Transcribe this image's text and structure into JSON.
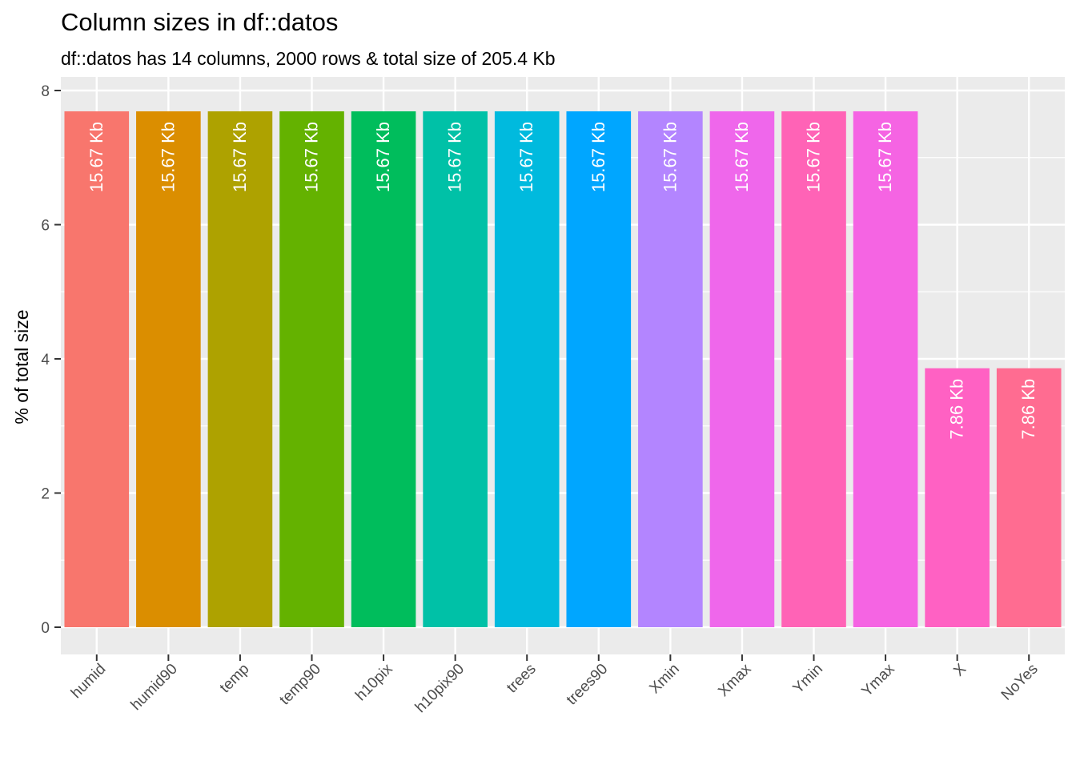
{
  "chart_data": {
    "type": "bar",
    "title": "Column sizes in df::datos",
    "subtitle": "df::datos has 14 columns, 2000 rows & total size of 205.4 Kb",
    "xlabel": "",
    "ylabel": "% of total size",
    "ylim": [
      -0.35,
      8.1
    ],
    "yticks": [
      0,
      2,
      4,
      6,
      8
    ],
    "grid": true,
    "legend": "none",
    "categories": [
      "humid",
      "humid90",
      "temp",
      "temp90",
      "h10pix",
      "h10pix90",
      "trees",
      "trees90",
      "Xmin",
      "Xmax",
      "Ymin",
      "Ymax",
      "X",
      "NoYes"
    ],
    "values": [
      7.69,
      7.69,
      7.69,
      7.69,
      7.69,
      7.69,
      7.69,
      7.69,
      7.69,
      7.69,
      7.69,
      7.69,
      3.86,
      3.86
    ],
    "labels": [
      "15.67 Kb",
      "15.67 Kb",
      "15.67 Kb",
      "15.67 Kb",
      "15.67 Kb",
      "15.67 Kb",
      "15.67 Kb",
      "15.67 Kb",
      "15.67 Kb",
      "15.67 Kb",
      "15.67 Kb",
      "15.67 Kb",
      "7.86 Kb",
      "7.86 Kb"
    ],
    "colors": [
      "#F8766D",
      "#DB8E00",
      "#AEA200",
      "#64B200",
      "#00BD5C",
      "#00C1A7",
      "#00BADE",
      "#00A6FF",
      "#B385FF",
      "#EF67EB",
      "#FF63B6",
      "#F564E3",
      "#FF61C3",
      "#FF6C91"
    ]
  }
}
